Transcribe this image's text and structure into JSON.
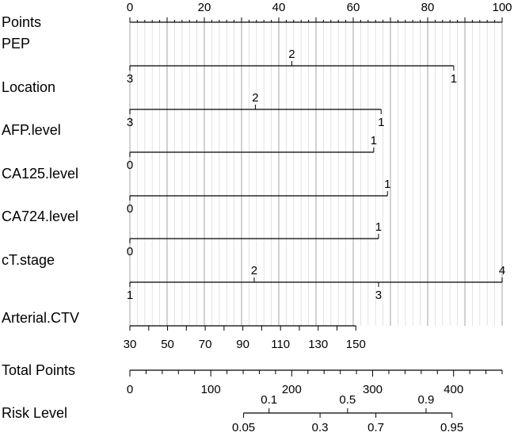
{
  "chart_data": {
    "type": "nomogram",
    "points_axis": {
      "label": "Points",
      "range": [
        0,
        100
      ],
      "major_ticks": [
        0,
        20,
        40,
        60,
        80,
        100
      ],
      "minor_step": 2
    },
    "variables": [
      {
        "name": "PEP",
        "line_range": [
          0,
          87
        ],
        "levels": [
          {
            "label": "3",
            "points": 0,
            "side": "below"
          },
          {
            "label": "2",
            "points": 43.5,
            "side": "above"
          },
          {
            "label": "1",
            "points": 87,
            "side": "below"
          }
        ]
      },
      {
        "name": "Location",
        "line_range": [
          0,
          67.5
        ],
        "levels": [
          {
            "label": "3",
            "points": 0,
            "side": "below"
          },
          {
            "label": "2",
            "points": 33.7,
            "side": "above"
          },
          {
            "label": "1",
            "points": 67.5,
            "side": "below"
          }
        ]
      },
      {
        "name": "AFP.level",
        "line_range": [
          0,
          65.5
        ],
        "levels": [
          {
            "label": "0",
            "points": 0,
            "side": "below"
          },
          {
            "label": "1",
            "points": 65.5,
            "side": "above"
          }
        ]
      },
      {
        "name": "CA125.level",
        "line_range": [
          0,
          69.2
        ],
        "levels": [
          {
            "label": "0",
            "points": 0,
            "side": "below"
          },
          {
            "label": "1",
            "points": 69.2,
            "side": "above"
          }
        ]
      },
      {
        "name": "CA724.level",
        "line_range": [
          0,
          66.8
        ],
        "levels": [
          {
            "label": "0",
            "points": 0,
            "side": "below"
          },
          {
            "label": "1",
            "points": 66.8,
            "side": "above"
          }
        ]
      },
      {
        "name": "cT.stage",
        "line_range": [
          0,
          100
        ],
        "levels": [
          {
            "label": "1",
            "points": 0,
            "side": "below"
          },
          {
            "label": "2",
            "points": 33.4,
            "side": "above"
          },
          {
            "label": "3",
            "points": 66.8,
            "side": "below"
          },
          {
            "label": "4",
            "points": 100,
            "side": "above"
          }
        ]
      }
    ],
    "arterial_ctv": {
      "name": "Arterial.CTV",
      "range": [
        30,
        150
      ],
      "tick_values": [
        30,
        40,
        50,
        60,
        70,
        80,
        90,
        100,
        110,
        120,
        130,
        140,
        150
      ],
      "tick_labels": [
        "30",
        "50",
        "70",
        "90",
        "110",
        "130",
        "150"
      ],
      "points_at_min": 0,
      "points_at_max": 60.7
    },
    "total_points": {
      "label": "Total Points",
      "range": [
        0,
        460
      ],
      "minor_step": 20,
      "labels": [
        0,
        100,
        200,
        300,
        400
      ]
    },
    "risk_level": {
      "label": "Risk Level",
      "ticks": [
        {
          "label": "0.05",
          "total_points": 140.5,
          "side": "below"
        },
        {
          "label": "0.1",
          "total_points": 172,
          "side": "above"
        },
        {
          "label": "0.3",
          "total_points": 235,
          "side": "below"
        },
        {
          "label": "0.5",
          "total_points": 269,
          "side": "above"
        },
        {
          "label": "0.7",
          "total_points": 304,
          "side": "below"
        },
        {
          "label": "0.9",
          "total_points": 366,
          "side": "above"
        },
        {
          "label": "0.95",
          "total_points": 398,
          "side": "below"
        }
      ]
    }
  }
}
